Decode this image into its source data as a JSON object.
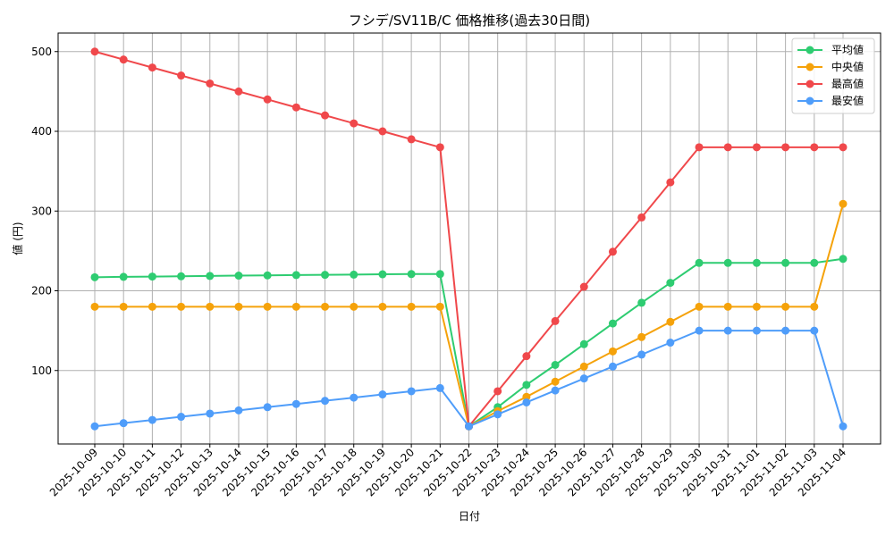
{
  "chart_data": {
    "type": "line",
    "title": "フシデ/SV11B/C 価格推移(過去30日間)",
    "xlabel": "日付",
    "ylabel": "値 (円)",
    "ylim": [
      0,
      525
    ],
    "yticks": [
      100,
      200,
      300,
      400,
      500
    ],
    "grid": true,
    "legend_position": "upper right",
    "categories": [
      "2025-10-09",
      "2025-10-10",
      "2025-10-11",
      "2025-10-12",
      "2025-10-13",
      "2025-10-14",
      "2025-10-15",
      "2025-10-16",
      "2025-10-17",
      "2025-10-18",
      "2025-10-19",
      "2025-10-20",
      "2025-10-21",
      "2025-10-22",
      "2025-10-23",
      "2025-10-24",
      "2025-10-25",
      "2025-10-26",
      "2025-10-27",
      "2025-10-28",
      "2025-10-29",
      "2025-10-30",
      "2025-10-31",
      "2025-11-01",
      "2025-11-02",
      "2025-11-03",
      "2025-11-04"
    ],
    "series": [
      {
        "name": "平均値",
        "color": "#2ecc71",
        "values": [
          217,
          217.5,
          217.8,
          218.2,
          218.6,
          219,
          219.3,
          219.7,
          220,
          220.3,
          220.7,
          221,
          221,
          30,
          54,
          82,
          107,
          133,
          159,
          185,
          210,
          235,
          235,
          235,
          235,
          235,
          240
        ]
      },
      {
        "name": "中央値",
        "color": "#f5a20a",
        "values": [
          180,
          180,
          180,
          180,
          180,
          180,
          180,
          180,
          180,
          180,
          180,
          180,
          180,
          30,
          49,
          67,
          86,
          105,
          124,
          142,
          161,
          180,
          180,
          180,
          180,
          180,
          309
        ]
      },
      {
        "name": "最高値",
        "color": "#f0484b",
        "values": [
          500,
          490,
          480,
          470,
          460,
          450,
          440,
          430,
          420,
          410,
          400,
          390,
          380,
          30,
          74,
          118,
          162,
          205,
          249,
          292,
          336,
          380,
          380,
          380,
          380,
          380,
          380
        ]
      },
      {
        "name": "最安値",
        "color": "#4f9dfa",
        "values": [
          30,
          34,
          38,
          42,
          46,
          50,
          54,
          58,
          62,
          66,
          70,
          74,
          78,
          30,
          45,
          60,
          75,
          90,
          105,
          120,
          135,
          150,
          150,
          150,
          150,
          150,
          30
        ]
      }
    ]
  }
}
